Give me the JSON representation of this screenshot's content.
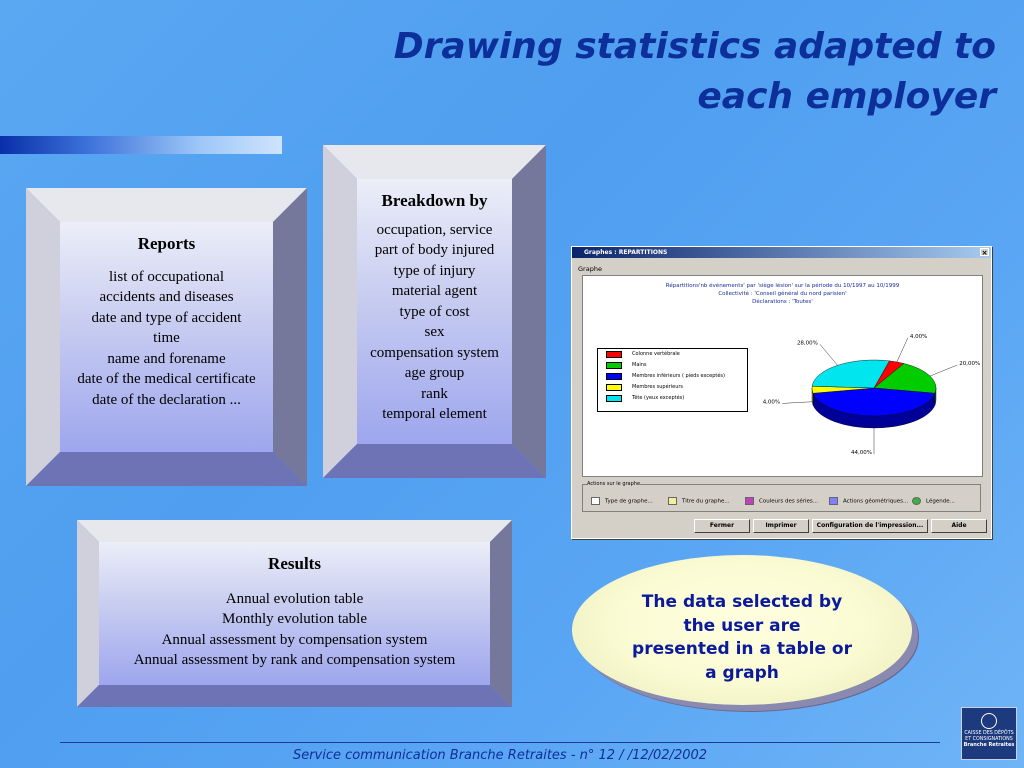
{
  "title": {
    "line1": "Drawing statistics adapted to",
    "line2": "each employer"
  },
  "reports_box": {
    "heading": "Reports",
    "lines": [
      "list of occupational",
      "accidents and diseases",
      "date and type of accident",
      "time",
      "name and forename",
      "date of the medical certificate",
      "date of the declaration ..."
    ]
  },
  "breakdown_box": {
    "heading": "Breakdown by",
    "lines": [
      "occupation, service",
      "part of body injured",
      "type of injury",
      "material agent",
      "type of cost",
      "sex",
      "compensation system",
      "age group",
      "rank",
      "temporal element"
    ]
  },
  "results_box": {
    "heading": "Results",
    "lines": [
      "Annual evolution table",
      "Monthly evolution table",
      "Annual assessment by compensation system",
      "Annual assessment by rank and compensation system"
    ]
  },
  "window": {
    "title": "Graphes : REPARTITIONS",
    "group_label": "Graphe",
    "actions_label": "Actions sur le graphe",
    "actions": [
      "Type de graphe...",
      "Titre du graphe...",
      "Couleurs des séries...",
      "Actions géométriques...",
      "Légende..."
    ],
    "buttons": [
      "Fermer",
      "Imprimer",
      "Configuration de l'impression...",
      "Aide"
    ]
  },
  "chart_data": {
    "type": "pie",
    "title": [
      "Répartitions'nb événements' par 'siège lésion' sur la période du 10/1997 au 10/1999",
      "Collectivité : 'Conseil général du nord parisien'",
      "Déclarations : 'Toutes'"
    ],
    "categories": [
      "Colonne vertébrale",
      "Mains",
      "Membres inférieurs ( pieds exceptés)",
      "Membres supérieurs",
      "Tête (yeux exceptés)"
    ],
    "values": [
      4.0,
      20.0,
      44.0,
      4.0,
      28.0
    ],
    "labels": [
      "4,00%",
      "20,00%",
      "44,00%",
      "4,00%",
      "28,00%"
    ],
    "colors": [
      "#ff0000",
      "#00cc00",
      "#0000ff",
      "#ffff00",
      "#00e5ee"
    ],
    "legend_position": "left"
  },
  "callout": {
    "text": "The data selected by the user are presented in a table or a graph"
  },
  "footer": {
    "text": "Service communication Branche Retraites - n° 12  /  /12/02/2002"
  },
  "logo": {
    "line1": "CAISSE DES DÉPÔTS",
    "line2": "ET CONSIGNATIONS",
    "line3": "Branche Retraites"
  }
}
